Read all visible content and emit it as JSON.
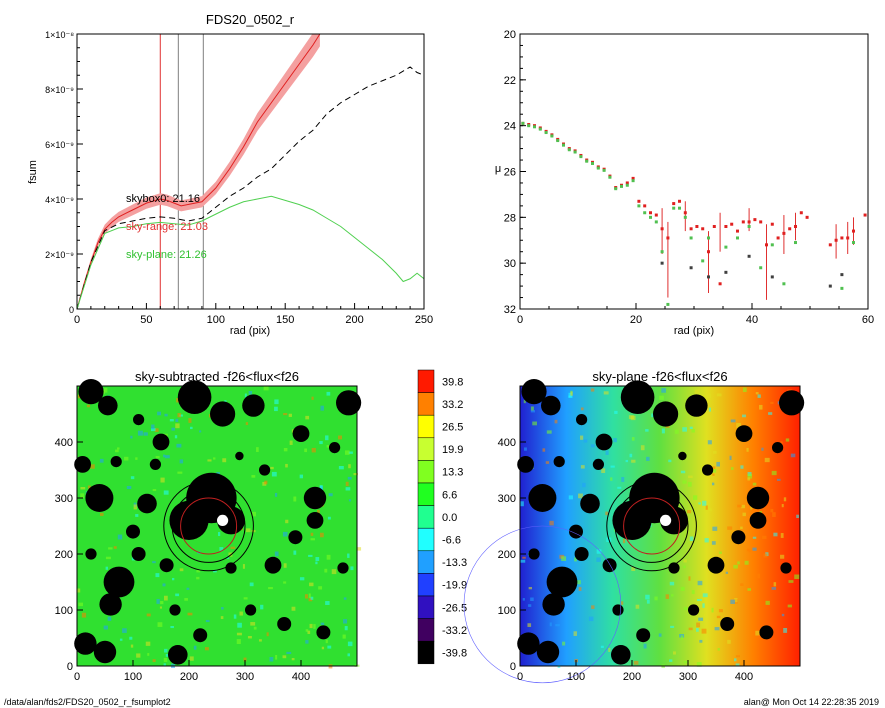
{
  "chart_data": [
    {
      "type": "line",
      "title": "FDS20_0502_r",
      "xlabel": "rad (pix)",
      "ylabel": "fsum",
      "xlim": [
        0,
        250
      ],
      "ylim": [
        0,
        1e-08
      ],
      "xticks": [
        "0",
        "50",
        "100",
        "150",
        "200",
        "250"
      ],
      "yticks": [
        "0",
        "2×10⁻⁹",
        "4×10⁻⁹",
        "6×10⁻⁹",
        "8×10⁻⁹",
        "1×10⁻⁸"
      ],
      "vertical_lines": [
        {
          "x": 60,
          "color": "#e03030"
        },
        {
          "x": 73,
          "color": "#808080"
        },
        {
          "x": 91,
          "color": "#808080"
        }
      ],
      "series": [
        {
          "color": "#e02020",
          "style": "solid-band",
          "x": [
            0,
            5,
            10,
            15,
            20,
            25,
            30,
            40,
            50,
            60,
            65,
            70,
            75,
            80,
            90,
            100,
            110,
            120,
            130,
            140,
            150,
            160,
            170,
            175
          ],
          "y": [
            0,
            9e-10,
            1.7e-09,
            2.4e-09,
            2.9e-09,
            3.15e-09,
            3.35e-09,
            3.6e-09,
            3.85e-09,
            4e-09,
            3.95e-09,
            3.85e-09,
            3.75e-09,
            3.8e-09,
            3.9e-09,
            4.4e-09,
            5.1e-09,
            5.9e-09,
            6.8e-09,
            7.5e-09,
            8.2e-09,
            8.9e-09,
            9.6e-09,
            1e-08
          ]
        },
        {
          "color": "#000000",
          "style": "dashed",
          "x": [
            0,
            10,
            20,
            30,
            40,
            50,
            60,
            70,
            80,
            90,
            100,
            110,
            120,
            130,
            140,
            150,
            160,
            170,
            180,
            190,
            200,
            210,
            220,
            230,
            240,
            245,
            250
          ],
          "y": [
            0,
            1.7e-09,
            2.85e-09,
            3.1e-09,
            3.2e-09,
            3.3e-09,
            3.35e-09,
            3.3e-09,
            3.2e-09,
            3.3e-09,
            3.7e-09,
            4.1e-09,
            4.4e-09,
            4.8e-09,
            5.1e-09,
            5.6e-09,
            6.1e-09,
            6.5e-09,
            7.1e-09,
            7.5e-09,
            7.8e-09,
            8.1e-09,
            8.3e-09,
            8.5e-09,
            8.8e-09,
            8.6e-09,
            8.5e-09
          ]
        },
        {
          "color": "#50d050",
          "style": "solid",
          "x": [
            0,
            10,
            20,
            30,
            40,
            50,
            60,
            70,
            80,
            90,
            100,
            110,
            120,
            130,
            140,
            150,
            160,
            170,
            180,
            190,
            200,
            210,
            220,
            230,
            235,
            240,
            245,
            250
          ],
          "y": [
            0,
            1.6e-09,
            2.75e-09,
            2.95e-09,
            3e-09,
            3.1e-09,
            3.15e-09,
            3.1e-09,
            3.05e-09,
            3.2e-09,
            3.45e-09,
            3.7e-09,
            3.9e-09,
            4e-09,
            4.1e-09,
            3.95e-09,
            3.8e-09,
            3.6e-09,
            3.3e-09,
            3e-09,
            2.6e-09,
            2.2e-09,
            1.8e-09,
            1.3e-09,
            1e-09,
            1.1e-09,
            1.3e-09,
            1.1e-09
          ]
        }
      ],
      "annotations": [
        {
          "text": "skybox0: 21.16",
          "color": "#000000",
          "x": 45,
          "y": 3.35e-09
        },
        {
          "text": "sky-range: 21.03",
          "color": "#e03030",
          "x": 45,
          "y": 2.5e-09
        },
        {
          "text": "sky-plane: 21.26",
          "color": "#30c030",
          "x": 45,
          "y": 1.5e-09
        }
      ]
    },
    {
      "type": "scatter",
      "title": "",
      "xlabel": "rad (pix)",
      "ylabel": "μ",
      "xlim": [
        0,
        60
      ],
      "ylim": [
        32,
        20
      ],
      "xticks": [
        "0",
        "20",
        "40",
        "60"
      ],
      "yticks": [
        "20",
        "22",
        "24",
        "26",
        "28",
        "30",
        "32"
      ],
      "series": [
        {
          "color": "#e02020",
          "x": [
            0.5,
            1.5,
            2.5,
            3.5,
            4.5,
            5.5,
            6.5,
            7.5,
            8.5,
            9.5,
            10.5,
            11.5,
            12.5,
            13.5,
            14.5,
            15.5,
            16.5,
            17.5,
            18.5,
            19.5,
            20.5,
            21.5,
            22.5,
            23.5,
            24.5,
            25.5,
            26.5,
            27.5,
            28.5,
            29.5,
            30.5,
            31.5,
            32.5,
            33.5,
            34.5,
            35.5,
            36.5,
            37.5,
            38.5,
            39.5,
            40.5,
            41.5,
            42.5,
            43.5,
            44.5,
            45.5,
            46.5,
            47.5,
            48.5,
            49.5,
            53.5,
            54.5,
            55.5,
            56.5,
            57.5,
            59.5
          ],
          "y": [
            23.9,
            23.95,
            24.0,
            24.1,
            24.25,
            24.4,
            24.6,
            24.8,
            25.0,
            25.1,
            25.3,
            25.5,
            25.6,
            25.8,
            25.9,
            26.2,
            26.7,
            26.6,
            26.5,
            26.3,
            27.3,
            27.5,
            27.8,
            27.9,
            28.5,
            28.9,
            27.4,
            27.3,
            27.8,
            28.5,
            28.4,
            28.5,
            29.5,
            28.4,
            30.9,
            28.4,
            28.3,
            28.6,
            28.2,
            28.2,
            28.1,
            28.2,
            29.2,
            28.3,
            28.9,
            28.7,
            28.5,
            28.4,
            27.8,
            28.0,
            29.2,
            29.0,
            28.9,
            28.9,
            28.6,
            27.9
          ]
        },
        {
          "color": "#50c050",
          "x": [
            0.5,
            1.5,
            2.5,
            3.5,
            4.5,
            5.5,
            6.5,
            7.5,
            8.5,
            9.5,
            10.5,
            11.5,
            12.5,
            13.5,
            14.5,
            15.5,
            16.5,
            17.5,
            18.5,
            19.5,
            20.5,
            21.5,
            22.5,
            23.5,
            24.5,
            25.5,
            26.5,
            27.5,
            28.5,
            29.5,
            31.5,
            32.5,
            35.5,
            37.5,
            39.5,
            41.5,
            43.5,
            45.5,
            47.5,
            55.5,
            57.5
          ],
          "y": [
            23.9,
            24.0,
            24.05,
            24.15,
            24.3,
            24.45,
            24.65,
            24.85,
            25.05,
            25.15,
            25.35,
            25.55,
            25.65,
            25.85,
            25.95,
            26.25,
            26.75,
            26.65,
            26.6,
            26.4,
            27.5,
            27.8,
            28.0,
            28.2,
            29.5,
            31.8,
            27.6,
            27.6,
            28.0,
            28.9,
            29.9,
            28.9,
            29.3,
            28.9,
            28.4,
            30.2,
            29.2,
            30.9,
            29.1,
            31.1,
            29.1
          ]
        },
        {
          "color": "#404040",
          "x": [
            24.5,
            29.5,
            32.5,
            35.5,
            39.5,
            43.5,
            53.5,
            55.5
          ],
          "y": [
            30.0,
            30.2,
            30.6,
            30.4,
            29.7,
            30.6,
            31.0,
            30.5
          ]
        }
      ],
      "errorbars": [
        {
          "x": 24.5,
          "lo": 27.6,
          "hi": 29.6
        },
        {
          "x": 25.5,
          "lo": 28.2,
          "hi": 31.5
        },
        {
          "x": 28.5,
          "lo": 27.3,
          "hi": 28.6
        },
        {
          "x": 32.5,
          "lo": 28.6,
          "hi": 31.3
        },
        {
          "x": 34.5,
          "lo": 27.8,
          "hi": 29.5
        },
        {
          "x": 39.5,
          "lo": 27.6,
          "hi": 28.6
        },
        {
          "x": 42.5,
          "lo": 28.3,
          "hi": 31.6
        },
        {
          "x": 45.5,
          "lo": 27.9,
          "hi": 29.6
        },
        {
          "x": 47.5,
          "lo": 27.8,
          "hi": 29.0
        },
        {
          "x": 54.5,
          "lo": 28.3,
          "hi": 29.8
        },
        {
          "x": 56.5,
          "lo": 28.2,
          "hi": 29.6
        },
        {
          "x": 57.5,
          "lo": 28.0,
          "hi": 29.2
        }
      ]
    },
    {
      "type": "heatmap",
      "title": "sky-subtracted -f26<flux<f26",
      "xlim": [
        0,
        500
      ],
      "ylim": [
        0,
        500
      ],
      "xticks": [
        "0",
        "100",
        "200",
        "300",
        "400"
      ],
      "yticks": [
        "0",
        "100",
        "200",
        "300",
        "400"
      ],
      "dominant_color": "#30e030"
    },
    {
      "type": "heatmap",
      "title": "sky-plane -f26<flux<f26",
      "xlim": [
        0,
        500
      ],
      "ylim": [
        0,
        500
      ],
      "xticks": [
        "0",
        "100",
        "200",
        "300",
        "400"
      ],
      "yticks": [
        "0",
        "100",
        "200",
        "300",
        "400"
      ],
      "gradient": [
        "#2020d0",
        "#20a0ff",
        "#30e0a0",
        "#60e040",
        "#e0e020",
        "#ff8000",
        "#ff2000"
      ]
    }
  ],
  "colorbar": {
    "labels": [
      "39.8",
      "33.2",
      "26.5",
      "19.9",
      "13.3",
      "6.6",
      "0.0",
      "-6.6",
      "-13.3",
      "-19.9",
      "-26.5",
      "-33.2",
      "-39.8"
    ],
    "colors": [
      "#ff1a00",
      "#ff8000",
      "#ffff00",
      "#c8ff30",
      "#80ff20",
      "#20ff20",
      "#20ff90",
      "#20ffff",
      "#20a0ff",
      "#2040ff",
      "#3010c0",
      "#400060",
      "#000000"
    ]
  },
  "footer": {
    "left": "/data/alan/fds2/FDS20_0502_r_fsumplot2",
    "right": "alan@  Mon Oct 14 22:28:35 2019"
  }
}
